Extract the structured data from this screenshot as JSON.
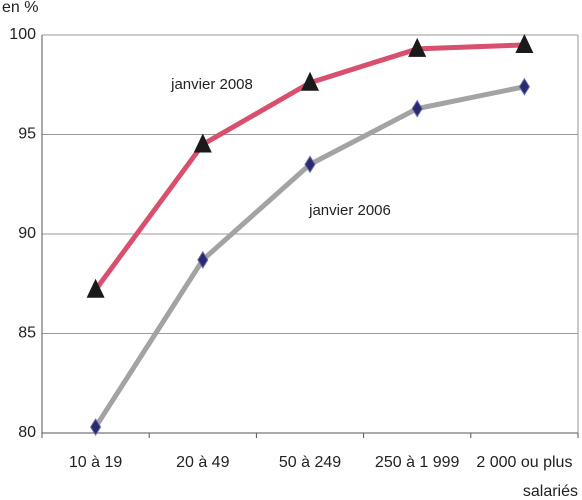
{
  "chart_data": {
    "type": "line",
    "y_label": "en %",
    "x_label": "salariés",
    "categories": [
      "10 à 19",
      "20 à 49",
      "50 à 249",
      "250 à 1 999",
      "2 000 ou plus"
    ],
    "series": [
      {
        "name": "janvier 2008",
        "color": "#d9506e",
        "marker": "triangle",
        "marker_color": "#1a1a1a",
        "values": [
          87.2,
          94.5,
          97.6,
          99.3,
          99.5
        ]
      },
      {
        "name": "janvier 2006",
        "color": "#a3a3a3",
        "marker": "diamond",
        "marker_color": "#2a2a6e",
        "values": [
          80.3,
          88.7,
          93.5,
          96.3,
          97.4
        ]
      }
    ],
    "ylim": [
      80,
      100
    ],
    "yticks": [
      80,
      85,
      90,
      95,
      100
    ],
    "grid": true
  }
}
